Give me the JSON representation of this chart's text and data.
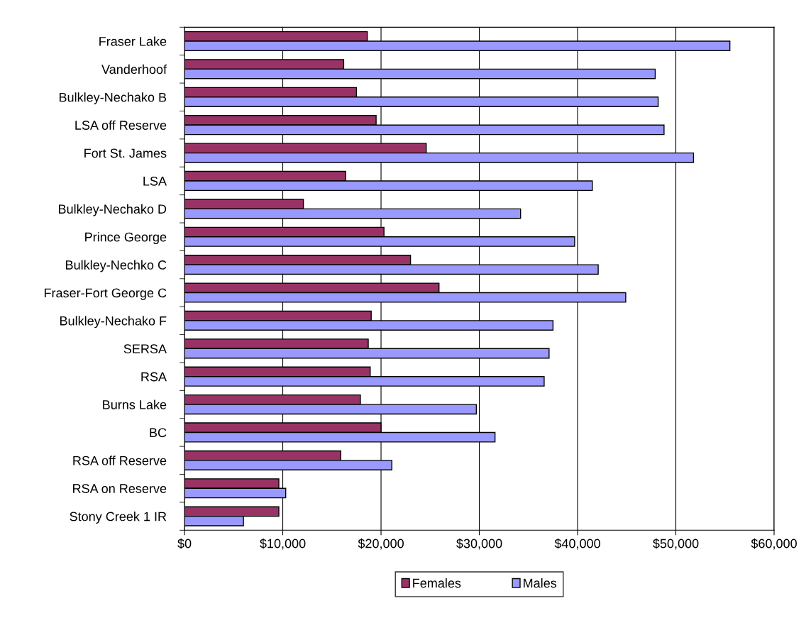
{
  "chart_data": {
    "type": "bar",
    "orientation": "horizontal",
    "categories": [
      "Fraser Lake",
      "Vanderhoof",
      "Bulkley-Nechako B",
      "LSA off Reserve",
      "Fort St. James",
      "LSA",
      "Bulkley-Nechako D",
      "Prince George",
      "Bulkley-Nechko C",
      "Fraser-Fort George C",
      "Bulkley-Nechako F",
      "SERSA",
      "RSA",
      "Burns Lake",
      "BC",
      "RSA off Reserve",
      "RSA on Reserve",
      "Stony Creek 1 IR"
    ],
    "series": [
      {
        "name": "Females",
        "color": "#993366",
        "values": [
          18600,
          16200,
          17500,
          19500,
          24600,
          16400,
          12100,
          20300,
          23000,
          25900,
          19000,
          18700,
          18900,
          17900,
          20000,
          15900,
          9600,
          9600
        ]
      },
      {
        "name": "Males",
        "color": "#9999ff",
        "values": [
          55500,
          47900,
          48200,
          48800,
          51800,
          41500,
          34200,
          39700,
          42100,
          44900,
          37500,
          37100,
          36600,
          29700,
          31600,
          21100,
          10300,
          6000
        ]
      }
    ],
    "xlim": [
      0,
      60000
    ],
    "xticks": [
      {
        "value": 0,
        "label": "$0"
      },
      {
        "value": 10000,
        "label": "$10,000"
      },
      {
        "value": 20000,
        "label": "$20,000"
      },
      {
        "value": 30000,
        "label": "$30,000"
      },
      {
        "value": 40000,
        "label": "$40,000"
      },
      {
        "value": 50000,
        "label": "$50,000"
      },
      {
        "value": 60000,
        "label": "$60,000"
      }
    ],
    "grid": "x",
    "legend": "bottom"
  }
}
